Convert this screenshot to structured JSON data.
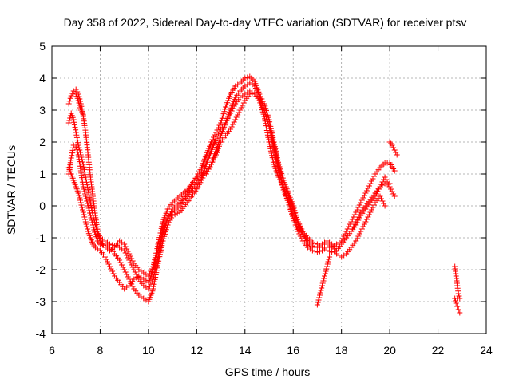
{
  "chart_data": {
    "type": "scatter",
    "title": "Day 358 of 2022, Sidereal Day-to-day VTEC variation (SDTVAR) for receiver ptsv",
    "xlabel": "GPS time / hours",
    "ylabel": "SDTVAR / TECUs",
    "xlim": [
      6,
      24
    ],
    "ylim": [
      -4,
      5
    ],
    "xticks": [
      "6",
      "8",
      "10",
      "12",
      "14",
      "16",
      "18",
      "20",
      "22",
      "24"
    ],
    "yticks": [
      "-4",
      "-3",
      "-2",
      "-1",
      "0",
      "1",
      "2",
      "3",
      "4",
      "5"
    ],
    "grid": true,
    "marker": "plus",
    "marker_color": "#ff0000",
    "series": [
      {
        "name": "ptsv",
        "tracks": [
          {
            "x": [
              6.7,
              6.8,
              6.9,
              7.0,
              7.1,
              7.2,
              7.3,
              7.4,
              7.5,
              7.6,
              7.7,
              7.8,
              7.9,
              8.0,
              8.2,
              8.4,
              8.6,
              8.8,
              9.0,
              9.2,
              9.4,
              9.6,
              9.8,
              10.0,
              10.2,
              10.4,
              10.6,
              10.8,
              11.0,
              11.3,
              11.6,
              11.9,
              12.2,
              12.4,
              12.6,
              12.8,
              13.0,
              13.2,
              13.4,
              13.6,
              13.8,
              14.0,
              14.2,
              14.4,
              14.6,
              14.8,
              15.0,
              15.2,
              15.4,
              15.6,
              15.8,
              16.0,
              16.2,
              16.4,
              16.6,
              16.8,
              17.0,
              17.2,
              17.4,
              17.6,
              17.8,
              18.0,
              18.2,
              18.4,
              18.6,
              18.8,
              19.0,
              19.2,
              19.4,
              19.6,
              19.8,
              20.0,
              20.2
            ],
            "y": [
              3.2,
              3.45,
              3.6,
              3.65,
              3.5,
              3.2,
              2.8,
              2.3,
              1.6,
              0.9,
              0.3,
              -0.3,
              -0.8,
              -1.1,
              -1.3,
              -1.4,
              -1.3,
              -1.1,
              -1.2,
              -1.5,
              -1.8,
              -2.0,
              -2.1,
              -2.2,
              -1.9,
              -1.2,
              -0.5,
              -0.1,
              0.1,
              0.3,
              0.5,
              0.8,
              1.2,
              1.6,
              2.0,
              2.3,
              2.6,
              3.1,
              3.5,
              3.75,
              3.85,
              4.0,
              4.05,
              3.9,
              3.5,
              3.0,
              2.5,
              1.9,
              1.2,
              0.6,
              0.1,
              -0.4,
              -0.8,
              -1.1,
              -1.3,
              -1.4,
              -1.45,
              -1.4,
              -1.3,
              -1.3,
              -1.2,
              -1.1,
              -0.8,
              -0.5,
              -0.2,
              0.1,
              0.4,
              0.7,
              1.0,
              1.2,
              1.35,
              1.35,
              1.1
            ]
          },
          {
            "x": [
              6.7,
              6.8,
              6.9,
              7.0,
              7.1,
              7.2,
              7.3,
              7.4,
              7.5,
              7.6,
              7.7,
              7.8,
              7.9,
              8.0,
              8.2,
              8.4,
              8.6,
              8.8,
              9.0,
              9.2,
              9.4,
              9.6,
              9.8,
              10.0,
              10.2,
              10.4,
              10.6,
              10.8,
              11.0,
              11.3,
              11.6,
              11.9,
              12.2,
              12.4,
              12.6,
              12.8,
              13.0,
              13.2,
              13.4,
              13.6,
              13.8,
              14.0,
              14.2,
              14.4,
              14.6,
              14.8,
              15.0,
              15.2,
              15.4,
              15.6,
              15.8,
              16.0,
              16.2,
              16.4,
              16.6,
              16.8,
              17.0,
              17.2,
              17.4,
              17.6,
              17.8,
              18.0,
              18.2,
              18.4,
              18.6,
              18.8,
              19.0,
              19.2,
              19.4,
              19.6,
              19.8,
              20.0,
              20.2
            ],
            "y": [
              2.6,
              2.9,
              2.7,
              2.3,
              1.9,
              1.6,
              1.3,
              0.9,
              0.5,
              0.1,
              -0.3,
              -0.6,
              -0.8,
              -1.0,
              -1.1,
              -1.2,
              -1.25,
              -1.3,
              -1.4,
              -1.7,
              -2.0,
              -2.3,
              -2.5,
              -2.6,
              -2.3,
              -1.6,
              -0.9,
              -0.4,
              -0.2,
              0.0,
              0.3,
              0.6,
              0.9,
              1.3,
              1.7,
              2.1,
              2.4,
              2.6,
              3.0,
              3.4,
              3.6,
              3.75,
              3.85,
              3.75,
              3.5,
              3.2,
              2.7,
              2.0,
              1.3,
              0.8,
              0.4,
              0.0,
              -0.5,
              -0.9,
              -1.15,
              -1.3,
              -1.3,
              -1.2,
              -1.2,
              -1.3,
              -1.4,
              -1.2,
              -1.0,
              -0.8,
              -0.6,
              -0.3,
              -0.1,
              0.1,
              0.3,
              0.6,
              0.9,
              0.6,
              0.3
            ]
          },
          {
            "x": [
              6.7,
              6.8,
              6.9,
              7.0,
              7.1,
              7.2,
              7.3,
              7.4,
              7.5,
              7.6,
              7.7,
              7.8,
              7.9,
              8.0,
              8.2,
              8.4,
              8.6,
              8.8,
              9.0,
              9.2,
              9.4,
              9.6,
              9.8,
              10.0,
              10.2,
              10.4,
              10.6,
              10.8,
              11.0,
              11.3,
              11.6,
              11.9,
              12.2,
              12.4,
              12.6,
              12.8,
              13.0,
              13.2,
              13.4,
              13.6,
              13.8,
              14.0,
              14.2,
              14.4,
              14.6,
              14.8,
              15.0,
              15.2,
              15.4,
              15.6,
              15.8,
              16.0,
              16.2,
              16.4,
              16.6,
              16.8,
              17.0,
              17.2,
              17.4,
              17.6,
              17.8,
              18.0,
              18.2,
              18.4,
              18.6,
              18.8,
              19.0,
              19.2,
              19.4,
              19.6,
              19.8
            ],
            "y": [
              1.0,
              1.5,
              1.9,
              1.85,
              1.6,
              1.1,
              0.6,
              0.3,
              0.0,
              -0.3,
              -0.6,
              -0.9,
              -1.1,
              -1.2,
              -1.2,
              -1.3,
              -1.5,
              -1.7,
              -2.0,
              -2.3,
              -2.6,
              -2.8,
              -2.9,
              -3.0,
              -2.6,
              -1.8,
              -1.1,
              -0.6,
              -0.3,
              -0.2,
              0.1,
              0.4,
              0.8,
              1.1,
              1.3,
              1.6,
              2.0,
              2.2,
              2.4,
              2.7,
              3.0,
              3.3,
              3.5,
              3.55,
              3.4,
              3.0,
              2.5,
              1.8,
              1.1,
              0.5,
              0.1,
              -0.3,
              -0.6,
              -0.9,
              -1.1,
              -1.25,
              -1.3,
              -1.2,
              -1.1,
              -1.2,
              -1.5,
              -1.6,
              -1.5,
              -1.3,
              -1.1,
              -0.8,
              -0.5,
              -0.2,
              0.1,
              0.3,
              0.0
            ]
          },
          {
            "x": [
              6.7,
              6.8,
              6.9,
              7.0,
              7.1,
              7.2,
              7.3,
              7.4,
              7.5,
              7.6,
              7.7,
              7.8,
              7.9,
              8.0,
              8.2,
              8.4,
              8.6,
              8.8,
              9.0,
              9.2,
              9.4,
              9.6,
              9.8,
              10.0,
              10.2,
              10.4,
              10.6,
              10.8,
              11.0,
              11.3,
              11.6,
              11.9,
              12.2,
              12.4,
              12.6,
              12.8,
              13.0,
              13.2,
              13.4,
              13.6,
              13.8,
              14.0,
              14.2,
              14.4,
              14.6,
              14.8,
              15.0,
              15.2,
              15.4,
              15.6,
              15.8,
              16.0,
              16.2,
              16.4,
              16.6,
              16.8,
              17.0,
              17.2,
              17.4,
              17.6,
              17.8,
              18.0,
              18.2,
              18.4,
              18.6,
              18.8,
              19.0,
              19.2,
              19.4,
              19.6,
              19.8,
              20.0
            ],
            "y": [
              1.2,
              1.0,
              0.8,
              0.6,
              0.4,
              0.1,
              -0.2,
              -0.5,
              -0.8,
              -1.0,
              -1.2,
              -1.3,
              -1.35,
              -1.4,
              -1.6,
              -1.9,
              -2.2,
              -2.4,
              -2.6,
              -2.5,
              -2.3,
              -2.2,
              -2.3,
              -2.4,
              -2.0,
              -1.4,
              -0.8,
              -0.4,
              -0.1,
              0.1,
              0.4,
              0.8,
              1.0,
              1.0,
              1.3,
              1.7,
              2.2,
              2.6,
              2.9,
              3.2,
              3.4,
              3.5,
              3.6,
              3.5,
              3.3,
              2.8,
              2.0,
              1.3,
              0.9,
              0.6,
              0.3,
              -0.1,
              -0.5,
              -0.8,
              -1.0,
              -1.15,
              -1.2,
              -1.3,
              -1.4,
              -1.45,
              -1.4,
              -1.2,
              -1.0,
              -0.8,
              -0.5,
              -0.2,
              0.0,
              0.2,
              0.4,
              0.6,
              0.7,
              0.7
            ]
          },
          {
            "x": [
              7.0,
              7.1,
              7.2,
              7.3
            ],
            "y": [
              3.5,
              3.3,
              3.0,
              2.85
            ]
          },
          {
            "x": [
              17.0,
              17.1,
              17.2,
              17.3,
              17.4,
              17.5
            ],
            "y": [
              -3.1,
              -2.8,
              -2.5,
              -2.2,
              -1.9,
              -1.6
            ]
          },
          {
            "x": [
              20.0,
              20.1,
              20.2,
              20.3
            ],
            "y": [
              2.0,
              1.9,
              1.75,
              1.6
            ]
          },
          {
            "x": [
              22.7,
              22.75,
              22.8,
              22.85,
              22.9,
              22.7,
              22.75,
              22.8,
              22.85,
              22.9
            ],
            "y": [
              -1.9,
              -2.2,
              -2.5,
              -2.75,
              -2.9,
              -2.9,
              -3.05,
              -3.15,
              -3.25,
              -3.35
            ]
          }
        ]
      }
    ]
  }
}
